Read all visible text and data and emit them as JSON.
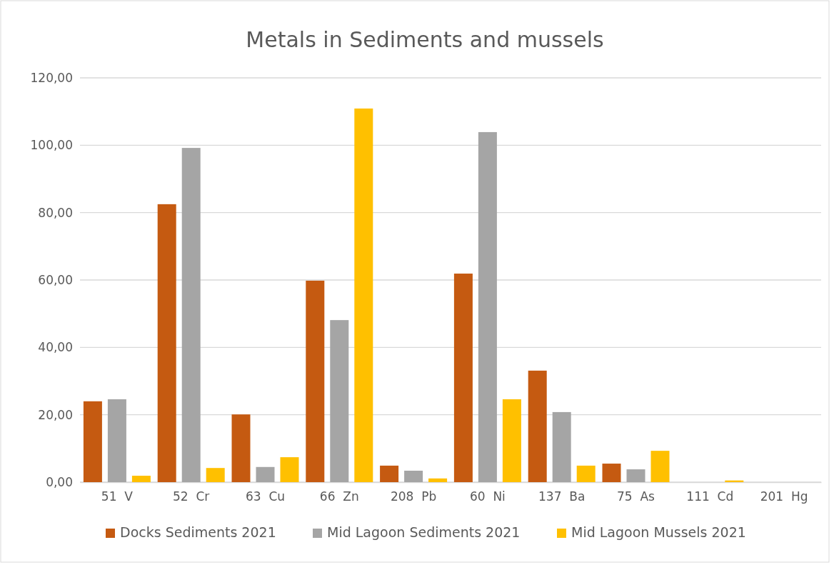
{
  "chart_data": {
    "type": "bar",
    "title": "Metals in Sediments and mussels",
    "categories": [
      "51  V",
      "52  Cr",
      "63  Cu",
      "66  Zn",
      "208  Pb",
      "60  Ni",
      "137  Ba",
      "75  As",
      "111  Cd",
      "201  Hg"
    ],
    "series": [
      {
        "name": "Docks Sediments 2021",
        "color": "#c55a11",
        "values": [
          24.0,
          82.5,
          20.1,
          59.8,
          4.9,
          61.9,
          33.1,
          5.5,
          null,
          0.0
        ]
      },
      {
        "name": "Mid Lagoon Sediments 2021",
        "color": "#a5a5a5",
        "values": [
          24.6,
          99.2,
          4.5,
          48.1,
          3.4,
          103.9,
          20.8,
          3.8,
          null,
          0.0
        ]
      },
      {
        "name": "Mid Lagoon Mussels 2021",
        "color": "#ffc000",
        "values": [
          1.9,
          4.2,
          7.4,
          110.9,
          1.1,
          24.6,
          4.9,
          9.3,
          0.5,
          0.0
        ]
      }
    ],
    "ylim": [
      0,
      120
    ],
    "yticks": [
      {
        "value": 0,
        "label": "0,00"
      },
      {
        "value": 20,
        "label": "20,00"
      },
      {
        "value": 40,
        "label": "40,00"
      },
      {
        "value": 60,
        "label": "60,00"
      },
      {
        "value": 80,
        "label": "80,00"
      },
      {
        "value": 100,
        "label": "100,00"
      },
      {
        "value": 120,
        "label": "120,00"
      }
    ],
    "grid": "y",
    "legend": "bottom"
  }
}
